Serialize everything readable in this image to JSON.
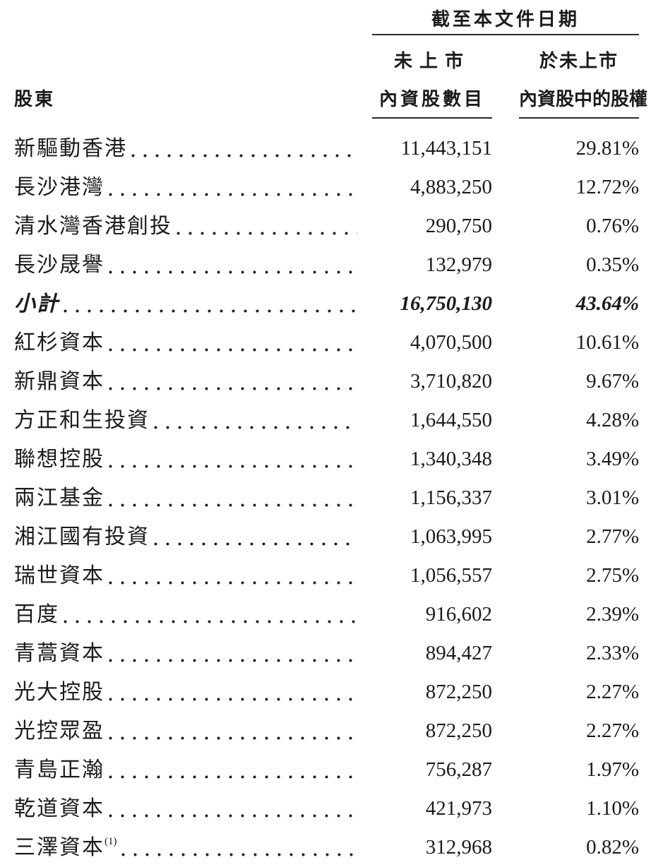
{
  "header": {
    "span_title": "截至本文件日期",
    "row_header": "股東",
    "col_shares": {
      "line1": "未上市",
      "line2": "內資股數目"
    },
    "col_ownership": {
      "line1": "於未上市",
      "line2": "內資股中的股權"
    }
  },
  "table": {
    "rows": [
      {
        "name": "新驅動香港",
        "shares": "11,443,151",
        "pct": "29.81%"
      },
      {
        "name": "長沙港灣",
        "shares": "4,883,250",
        "pct": "12.72%"
      },
      {
        "name": "清水灣香港創投",
        "shares": "290,750",
        "pct": "0.76%"
      },
      {
        "name": "長沙晟譽",
        "shares": "132,979",
        "pct": "0.35%"
      },
      {
        "name": "小計",
        "shares": "16,750,130",
        "pct": "43.64%",
        "subtotal": true
      },
      {
        "name": "紅杉資本",
        "shares": "4,070,500",
        "pct": "10.61%"
      },
      {
        "name": "新鼎資本",
        "shares": "3,710,820",
        "pct": "9.67%"
      },
      {
        "name": "方正和生投資",
        "shares": "1,644,550",
        "pct": "4.28%"
      },
      {
        "name": "聯想控股",
        "shares": "1,340,348",
        "pct": "3.49%"
      },
      {
        "name": "兩江基金",
        "shares": "1,156,337",
        "pct": "3.01%"
      },
      {
        "name": "湘江國有投資",
        "shares": "1,063,995",
        "pct": "2.77%"
      },
      {
        "name": "瑞世資本",
        "shares": "1,056,557",
        "pct": "2.75%"
      },
      {
        "name": "百度",
        "shares": "916,602",
        "pct": "2.39%"
      },
      {
        "name": "青蒿資本",
        "shares": "894,427",
        "pct": "2.33%"
      },
      {
        "name": "光大控股",
        "shares": "872,250",
        "pct": "2.27%"
      },
      {
        "name": "光控眾盈",
        "shares": "872,250",
        "pct": "2.27%"
      },
      {
        "name": "青島正瀚",
        "shares": "756,287",
        "pct": "1.97%"
      },
      {
        "name": "乾道資本",
        "shares": "421,973",
        "pct": "1.10%"
      },
      {
        "name": "三澤資本",
        "sup": "(1)",
        "shares": "312,968",
        "pct": "0.82%"
      }
    ]
  },
  "colors": {
    "background": "#ffffff",
    "text": "#1b1b1b",
    "rule": "#2a2a2a"
  }
}
